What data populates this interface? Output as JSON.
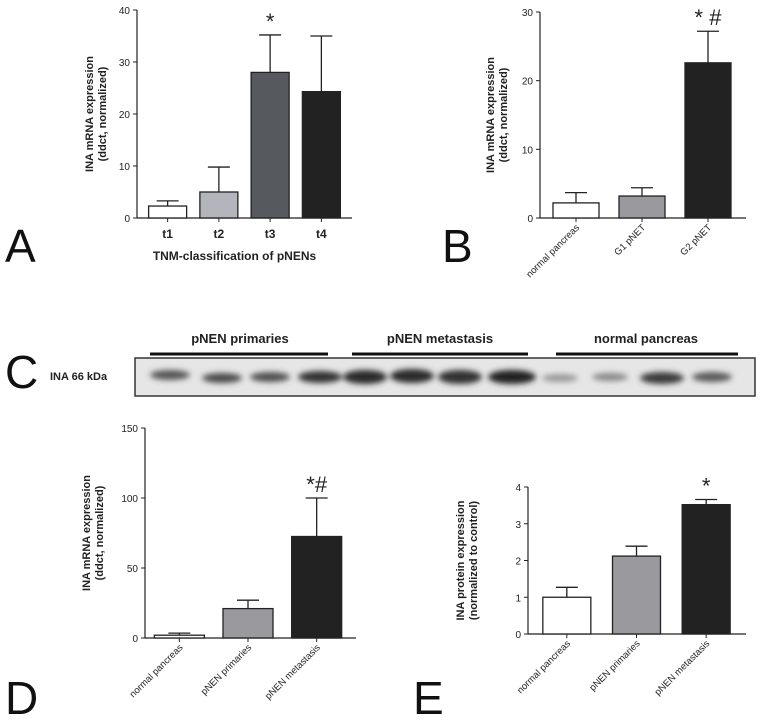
{
  "chart_data": [
    {
      "type": "bar",
      "panel": "A",
      "ylabel": [
        "INA mRNA expression",
        "(ddct, normalized)"
      ],
      "xlabel": "TNM-classification of pNENs",
      "categories": [
        "t1",
        "t2",
        "t3",
        "t4"
      ],
      "values": [
        2.3,
        5,
        28,
        24.3
      ],
      "errors": [
        1,
        4.8,
        7.2,
        10.7
      ],
      "colors": [
        "#ffffff",
        "#b4b4bc",
        "#56595e",
        "#222222"
      ],
      "markers": [
        null,
        null,
        "*",
        null
      ],
      "ylim": [
        0,
        40
      ],
      "yticks": [
        0,
        10,
        20,
        30,
        40
      ]
    },
    {
      "type": "bar",
      "panel": "B",
      "ylabel": [
        "INA mRNA expression",
        "(ddct, normalized)"
      ],
      "categories": [
        "normal pancreas",
        "G1 pNET",
        "G2 pNET"
      ],
      "values": [
        2.2,
        3.2,
        22.6
      ],
      "errors": [
        1.5,
        1.2,
        4.6
      ],
      "colors": [
        "#ffffff",
        "#9a9a9e",
        "#222222"
      ],
      "markers": [
        null,
        null,
        "* #"
      ],
      "ylim": [
        0,
        30
      ],
      "yticks": [
        0,
        10,
        20,
        30
      ]
    },
    {
      "type": "bar",
      "panel": "D",
      "ylabel": [
        "INA mRNA expression",
        "(ddct, normalized)"
      ],
      "categories": [
        "normal pancreas",
        "pNEN primaries",
        "pNEN metastasis"
      ],
      "values": [
        2,
        21,
        72.5
      ],
      "errors": [
        1.5,
        6,
        27.5
      ],
      "colors": [
        "#ffffff",
        "#9a9a9e",
        "#222222"
      ],
      "markers": [
        null,
        null,
        "*#"
      ],
      "ylim": [
        0,
        150
      ],
      "yticks": [
        0,
        50,
        100,
        150
      ]
    },
    {
      "type": "bar",
      "panel": "E",
      "ylabel": [
        "INA protein expression",
        "(normalized to control)"
      ],
      "categories": [
        "normal pancreas",
        "pNEN primaries",
        "pNEN metastasis"
      ],
      "values": [
        1,
        2.12,
        3.52
      ],
      "errors": [
        0.27,
        0.27,
        0.14
      ],
      "colors": [
        "#ffffff",
        "#9a9a9e",
        "#222222"
      ],
      "markers": [
        null,
        null,
        "*"
      ],
      "ylim": [
        0,
        4
      ],
      "yticks": [
        0,
        1,
        2,
        3,
        4
      ]
    }
  ],
  "blot": {
    "panel": "C",
    "label": "INA 66 kDa",
    "groups": [
      "pNEN primaries",
      "pNEN metastasis",
      "normal pancreas"
    ]
  }
}
